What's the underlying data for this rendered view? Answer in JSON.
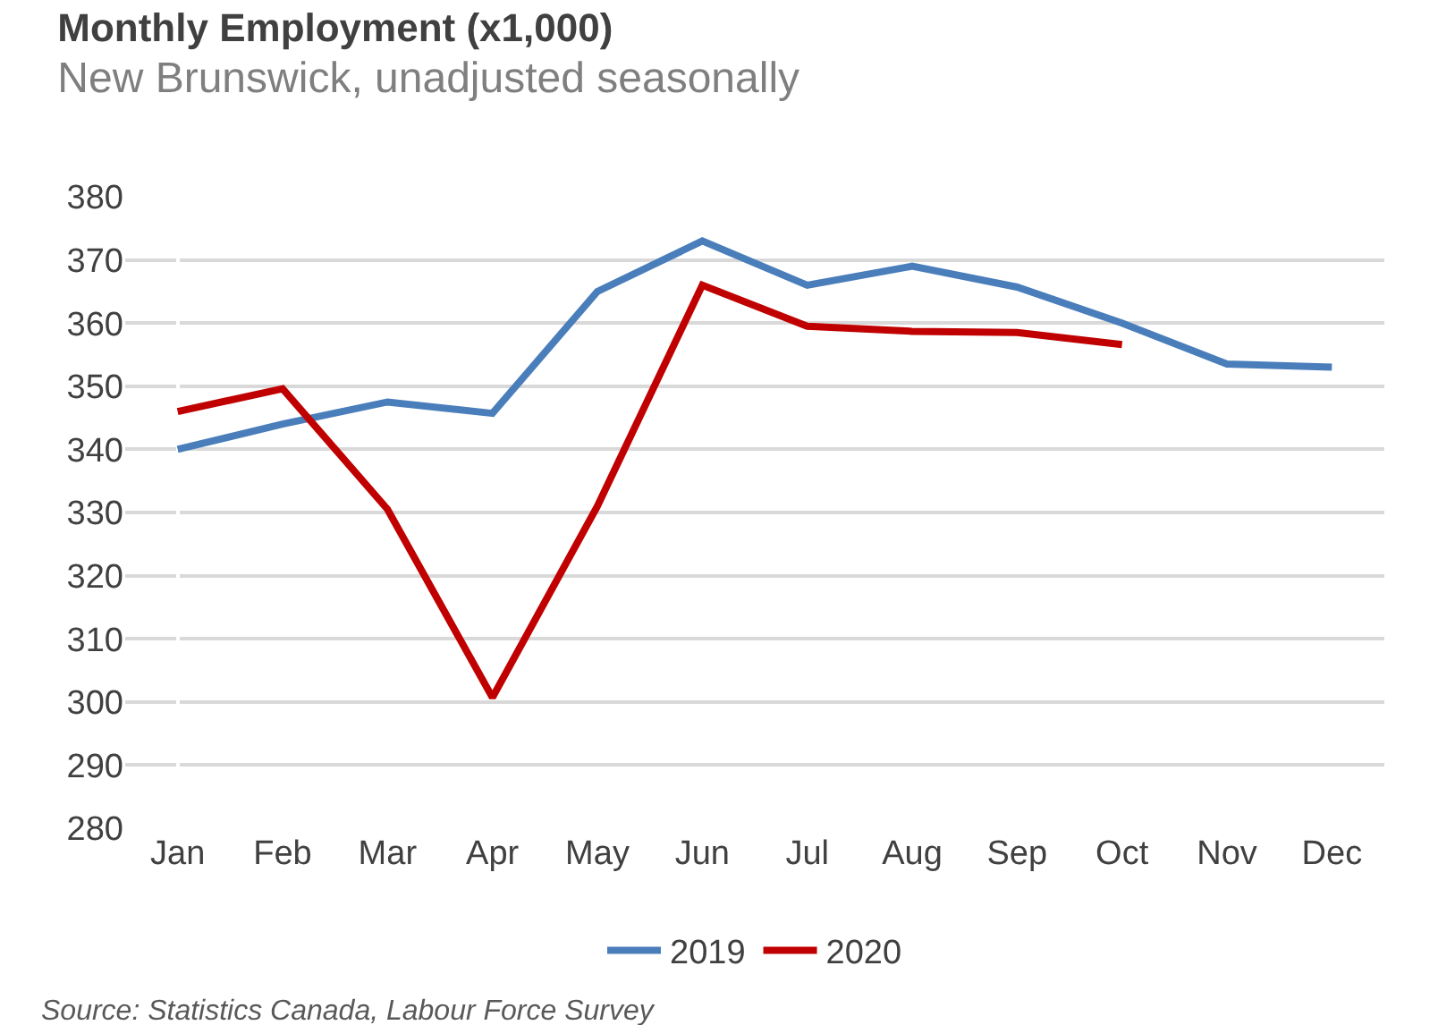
{
  "chart_data": {
    "type": "line",
    "title": "Monthly Employment (x1,000)",
    "subtitle": "New Brunswick, unadjusted seasonally",
    "categories": [
      "Jan",
      "Feb",
      "Mar",
      "Apr",
      "May",
      "Jun",
      "Jul",
      "Aug",
      "Sep",
      "Oct",
      "Nov",
      "Dec"
    ],
    "series": [
      {
        "name": "2019",
        "color": "#4a7ebb",
        "values": [
          340,
          344,
          347.5,
          345.7,
          365,
          373,
          366,
          369,
          365.7,
          360,
          353.5,
          353
        ]
      },
      {
        "name": "2020",
        "color": "#c00000",
        "values": [
          346,
          349.6,
          330.5,
          300.7,
          331,
          366,
          359.5,
          358.7,
          358.5,
          356.6,
          null,
          null
        ]
      }
    ],
    "ylim": [
      280,
      380
    ],
    "yticks": [
      280,
      290,
      300,
      310,
      320,
      330,
      340,
      350,
      360,
      370,
      380
    ],
    "grid": "y",
    "legend": "bottom",
    "marker": "none",
    "line_style": "solid",
    "annotations": [
      "Source: Statistics Canada, Labour Force Survey"
    ]
  }
}
